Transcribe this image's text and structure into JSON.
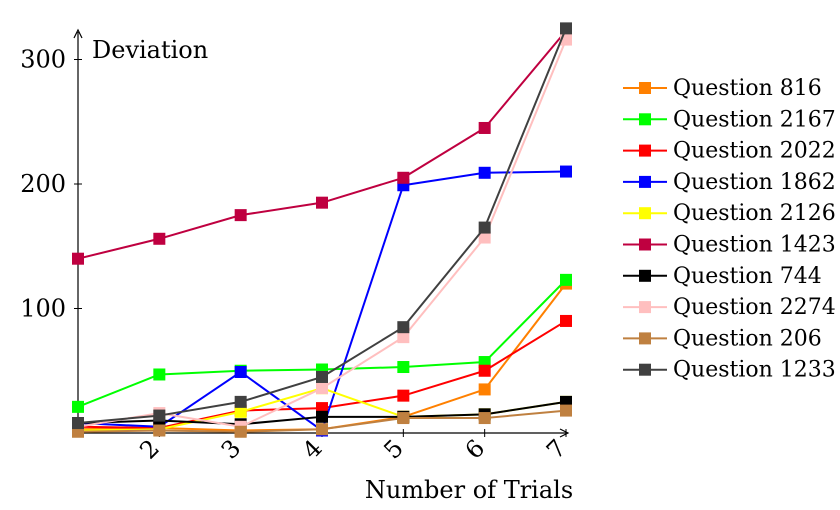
{
  "chart_data": {
    "type": "line",
    "title": "",
    "xlabel": "Number of Trials",
    "ylabel": "Deviation",
    "x": [
      1,
      2,
      3,
      4,
      5,
      6,
      7
    ],
    "xticks": [
      "2",
      "3",
      "4",
      "5",
      "6",
      "7"
    ],
    "yticks": [
      "100",
      "200",
      "300"
    ],
    "xlim": [
      1,
      7
    ],
    "ylim": [
      0,
      330
    ],
    "grid": false,
    "legend_position": "right",
    "series": [
      {
        "name": "Question 816",
        "color": "#ff8000",
        "values": [
          3,
          4,
          2,
          3,
          13,
          35,
          120
        ]
      },
      {
        "name": "Question 2167",
        "color": "#00ff00",
        "values": [
          21,
          47,
          50,
          51,
          53,
          57,
          123
        ]
      },
      {
        "name": "Question 2022",
        "color": "#ff0000",
        "values": [
          5,
          4,
          18,
          20,
          30,
          50,
          90
        ]
      },
      {
        "name": "Question 1862",
        "color": "#0000ff",
        "values": [
          8,
          5,
          49,
          2,
          199,
          209,
          210
        ]
      },
      {
        "name": "Question 2126",
        "color": "#ffff00",
        "values": [
          2,
          3,
          17,
          36,
          13,
          15,
          25
        ]
      },
      {
        "name": "Question 1423",
        "color": "#bf0040",
        "values": [
          140,
          156,
          175,
          185,
          205,
          245,
          323
        ]
      },
      {
        "name": "Question 744",
        "color": "#000000",
        "values": [
          8,
          10,
          7,
          13,
          13,
          15,
          25
        ]
      },
      {
        "name": "Question 2274",
        "color": "#ffbfbf",
        "values": [
          5,
          16,
          5,
          36,
          77,
          157,
          316
        ]
      },
      {
        "name": "Question 206",
        "color": "#bf8040",
        "values": [
          1,
          2,
          1,
          3,
          12,
          12,
          18
        ]
      },
      {
        "name": "Question 1233",
        "color": "#404040",
        "values": [
          8,
          14,
          25,
          45,
          85,
          165,
          325
        ]
      }
    ]
  }
}
